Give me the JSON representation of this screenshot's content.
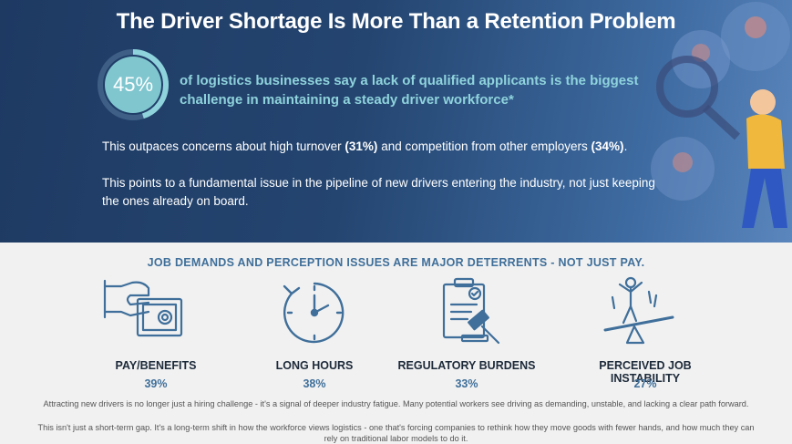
{
  "header": {
    "title": "The Driver Shortage Is More Than a Retention Problem",
    "stat_value": "45%",
    "stat_text": "of logistics businesses say a lack of qualified applicants is the biggest challenge in maintaining a steady driver workforce*",
    "p1_pre": "This outpaces concerns about high turnover ",
    "p1_v1": "(31%)",
    "p1_mid": " and competition from other employers ",
    "p1_v2": "(34%)",
    "p1_end": ".",
    "p2": "This points to a fundamental issue in the pipeline of new drivers entering the industry, not just keeping the ones already on board."
  },
  "section": {
    "heading": "JOB DEMANDS AND PERCEPTION ISSUES ARE MAJOR DETERRENTS - NOT JUST PAY.",
    "items": [
      {
        "label": "PAY/BENEFITS",
        "value": "39%",
        "icon": "money-hand-icon"
      },
      {
        "label": "LONG HOURS",
        "value": "38%",
        "icon": "clock-icon"
      },
      {
        "label": "REGULATORY BURDENS",
        "value": "33%",
        "icon": "document-gavel-icon"
      },
      {
        "label": "PERCEIVED JOB INSTABILITY",
        "value": "27%",
        "icon": "seesaw-person-icon"
      }
    ]
  },
  "footer": {
    "line1": "Attracting new drivers is no longer just a hiring challenge - it's a signal of deeper industry fatigue. Many potential workers see driving as demanding, unstable, and lacking a clear path forward.",
    "line2": "This isn't just a short-term gap. It's a long-term shift in how the workforce views logistics - one that's forcing companies to rethink how they move goods with fewer hands, and how much they can rely on traditional labor models to do it."
  },
  "colors": {
    "accent": "#8fd3dc",
    "navy": "#1e3a63",
    "icon": "#3f6f9a"
  }
}
